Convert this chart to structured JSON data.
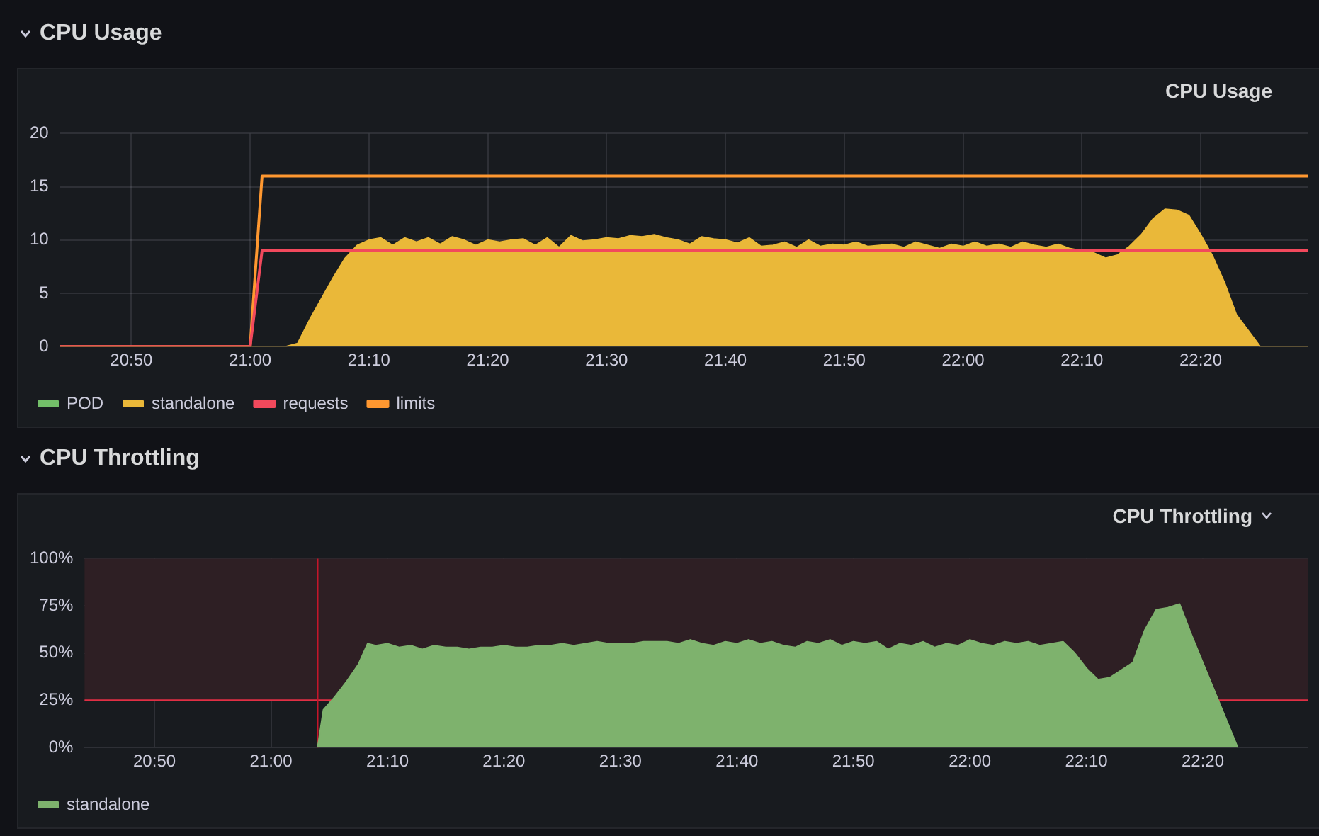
{
  "chart_data": [
    {
      "type": "area",
      "title": "CPU Usage",
      "subtitle": "CPU Usage",
      "xlim": [
        20.7333,
        22.4833
      ],
      "xticks": [
        {
          "value": 20.8333,
          "label": "20:50"
        },
        {
          "value": 21,
          "label": "21:00"
        },
        {
          "value": 21.1667,
          "label": "21:10"
        },
        {
          "value": 21.3333,
          "label": "21:20"
        },
        {
          "value": 21.5,
          "label": "21:30"
        },
        {
          "value": 21.6667,
          "label": "21:40"
        },
        {
          "value": 21.8333,
          "label": "21:50"
        },
        {
          "value": 22,
          "label": "22:00"
        },
        {
          "value": 22.1667,
          "label": "22:10"
        },
        {
          "value": 22.3333,
          "label": "22:20"
        }
      ],
      "ylim": [
        0,
        20
      ],
      "yticks": [
        0,
        5,
        10,
        15,
        20
      ],
      "grid": true,
      "legend": "bottom left",
      "marker": "none",
      "series": [
        {
          "name": "POD",
          "color": "#73bf69"
        },
        {
          "name": "standalone",
          "color": "#eab839",
          "x": [
            20.7333,
            21.05,
            21.0667,
            21.0833,
            21.1,
            21.1167,
            21.1333,
            21.15,
            21.1667,
            21.1833,
            21.2,
            21.2167,
            21.2333,
            21.25,
            21.2667,
            21.2833,
            21.3,
            21.3167,
            21.3333,
            21.35,
            21.3667,
            21.3833,
            21.4,
            21.4167,
            21.4333,
            21.45,
            21.4667,
            21.4833,
            21.5,
            21.5167,
            21.5333,
            21.55,
            21.5667,
            21.5833,
            21.6,
            21.6167,
            21.6333,
            21.65,
            21.6667,
            21.6833,
            21.7,
            21.7167,
            21.7333,
            21.75,
            21.7667,
            21.7833,
            21.8,
            21.8167,
            21.8333,
            21.85,
            21.8667,
            21.8833,
            21.9,
            21.9167,
            21.9333,
            21.95,
            21.9667,
            21.9833,
            22,
            22.0167,
            22.0333,
            22.05,
            22.0667,
            22.0833,
            22.1,
            22.1167,
            22.1333,
            22.15,
            22.1667,
            22.1833,
            22.2,
            22.2167,
            22.2333,
            22.25,
            22.2667,
            22.2833,
            22.3,
            22.3167,
            22.3333,
            22.35,
            22.3667,
            22.3833,
            22.4,
            22.4167,
            22.4833
          ],
          "values": [
            0,
            0,
            0.3,
            2.5,
            4.5,
            6.5,
            8.3,
            9.5,
            10,
            10.2,
            9.5,
            10.2,
            9.8,
            10.2,
            9.6,
            10.3,
            10,
            9.5,
            10,
            9.8,
            10,
            10.1,
            9.5,
            10.2,
            9.3,
            10.4,
            9.9,
            10,
            10.2,
            10.1,
            10.4,
            10.3,
            10.5,
            10.2,
            10,
            9.6,
            10.3,
            10.1,
            10,
            9.7,
            10.2,
            9.4,
            9.5,
            9.8,
            9.3,
            10,
            9.4,
            9.6,
            9.5,
            9.8,
            9.4,
            9.5,
            9.6,
            9.3,
            9.8,
            9.5,
            9.2,
            9.6,
            9.4,
            9.8,
            9.4,
            9.6,
            9.3,
            9.8,
            9.5,
            9.3,
            9.6,
            9.2,
            9,
            8.8,
            8.3,
            8.6,
            9.4,
            10.5,
            12,
            12.9,
            12.8,
            12.3,
            10.5,
            8.5,
            6,
            3,
            1.5,
            0,
            0
          ]
        },
        {
          "name": "requests",
          "type": "line",
          "color": "#f2495c",
          "x": [
            20.7333,
            21,
            21.0167,
            22.4833
          ],
          "values": [
            0,
            0,
            9,
            9
          ]
        },
        {
          "name": "limits",
          "type": "line",
          "color": "#ff9830",
          "x": [
            20.7333,
            21,
            21.0167,
            22.4833
          ],
          "values": [
            0,
            0,
            16,
            16
          ]
        }
      ]
    },
    {
      "type": "area",
      "title": "CPU Throttling",
      "subtitle": "CPU Throttling",
      "xlim": [
        20.7333,
        22.4833
      ],
      "xticks": [
        {
          "value": 20.8333,
          "label": "20:50"
        },
        {
          "value": 21,
          "label": "21:00"
        },
        {
          "value": 21.1667,
          "label": "21:10"
        },
        {
          "value": 21.3333,
          "label": "21:20"
        },
        {
          "value": 21.5,
          "label": "21:30"
        },
        {
          "value": 21.6667,
          "label": "21:40"
        },
        {
          "value": 21.8333,
          "label": "21:50"
        },
        {
          "value": 22,
          "label": "22:00"
        },
        {
          "value": 22.1667,
          "label": "22:10"
        },
        {
          "value": 22.3333,
          "label": "22:20"
        }
      ],
      "ylim": [
        0,
        100
      ],
      "yticks": [
        {
          "value": 0,
          "label": "0%"
        },
        {
          "value": 25,
          "label": "25%"
        },
        {
          "value": 50,
          "label": "50%"
        },
        {
          "value": 75,
          "label": "75%"
        },
        {
          "value": 100,
          "label": "100%"
        }
      ],
      "grid": true,
      "legend": "bottom left",
      "marker": "none",
      "bands": [
        {
          "axis": "y",
          "from": 25,
          "to": 100,
          "color": "#2e1f24"
        }
      ],
      "ref_lines": [
        {
          "axis": "y",
          "value": 25,
          "color": "#e02f44"
        },
        {
          "axis": "x",
          "value": 21.0667,
          "color": "#c4162a"
        }
      ],
      "series": [
        {
          "name": "standalone",
          "color": "#7eb26d",
          "x": [
            21.0667,
            21.075,
            21.0917,
            21.1083,
            21.125,
            21.1383,
            21.15,
            21.1667,
            21.1833,
            21.2,
            21.2167,
            21.2333,
            21.25,
            21.2667,
            21.2833,
            21.3,
            21.3167,
            21.3333,
            21.35,
            21.3667,
            21.3833,
            21.4,
            21.4167,
            21.4333,
            21.45,
            21.4667,
            21.4833,
            21.5,
            21.5167,
            21.5333,
            21.55,
            21.5667,
            21.5833,
            21.6,
            21.6167,
            21.6333,
            21.65,
            21.6667,
            21.6833,
            21.7,
            21.7167,
            21.7333,
            21.75,
            21.7667,
            21.7833,
            21.8,
            21.8167,
            21.8333,
            21.85,
            21.8667,
            21.8833,
            21.9,
            21.9167,
            21.9333,
            21.95,
            21.9667,
            21.9833,
            22,
            22.0167,
            22.0333,
            22.05,
            22.0667,
            22.0833,
            22.1,
            22.1167,
            22.1333,
            22.15,
            22.1667,
            22.1833,
            22.2,
            22.2167,
            22.2333,
            22.25,
            22.2667,
            22.2833,
            22.3,
            22.3167,
            22.3333,
            22.35,
            22.3667,
            22.3833
          ],
          "values": [
            0,
            20,
            27,
            35,
            44,
            55,
            54,
            55,
            53,
            54,
            52,
            54,
            53,
            53,
            52,
            53,
            53,
            54,
            53,
            53,
            54,
            54,
            55,
            54,
            55,
            56,
            55,
            55,
            55,
            56,
            56,
            56,
            55,
            57,
            55,
            54,
            56,
            55,
            57,
            55,
            56,
            54,
            53,
            56,
            55,
            57,
            54,
            56,
            55,
            56,
            52,
            55,
            54,
            56,
            53,
            55,
            54,
            57,
            55,
            54,
            56,
            55,
            56,
            54,
            55,
            56,
            50,
            42,
            36,
            37,
            41,
            45,
            62,
            73,
            74,
            76,
            60,
            45,
            30,
            15,
            0
          ]
        }
      ]
    }
  ]
}
